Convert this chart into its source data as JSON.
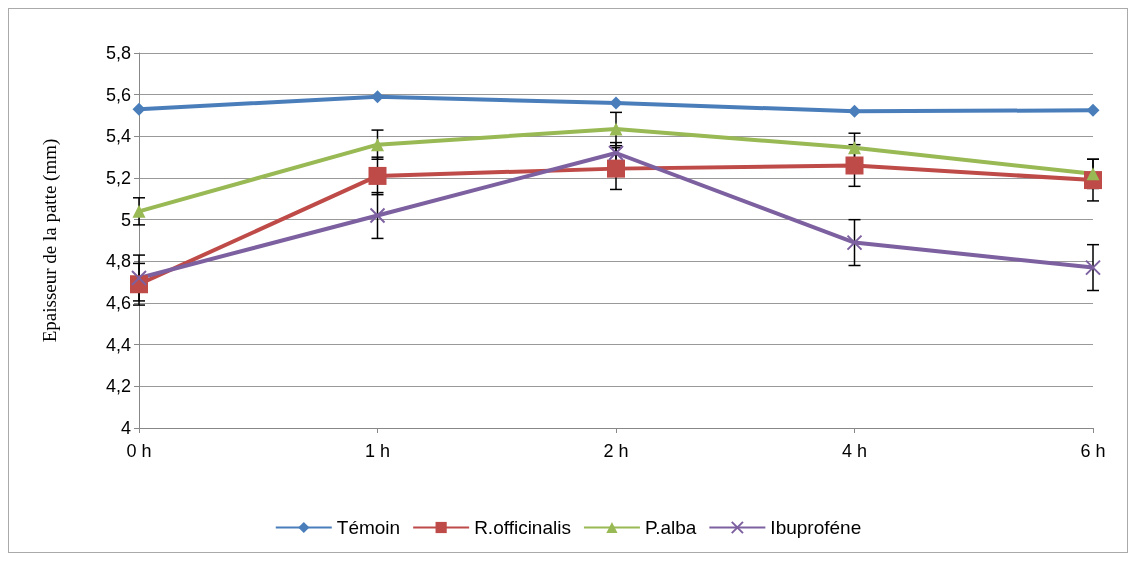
{
  "chart_data": {
    "type": "line",
    "ylabel": "Epaisseur de la patte (mm)",
    "categories": [
      "0 h",
      "1 h",
      "2 h",
      "4 h",
      "6 h"
    ],
    "ylim": [
      4,
      5.8
    ],
    "yticks": [
      {
        "value": 4,
        "label": "4"
      },
      {
        "value": 4.2,
        "label": "4,2"
      },
      {
        "value": 4.4,
        "label": "4,4"
      },
      {
        "value": 4.6,
        "label": "4,6"
      },
      {
        "value": 4.8,
        "label": "4,8"
      },
      {
        "value": 5,
        "label": "5"
      },
      {
        "value": 5.2,
        "label": "5,2"
      },
      {
        "value": 5.4,
        "label": "5,4"
      },
      {
        "value": 5.6,
        "label": "5,6"
      },
      {
        "value": 5.8,
        "label": "5,8"
      }
    ],
    "grid": "y",
    "legend": "bottom",
    "line_style": "solid",
    "series": [
      {
        "name": "Témoin",
        "color": "#4a7ebb",
        "marker": "diamond",
        "values": [
          5.53,
          5.59,
          5.56,
          5.52,
          5.525
        ]
      },
      {
        "name": "R.officinalis",
        "color": "#be4b48",
        "marker": "square",
        "values": [
          4.69,
          5.21,
          5.245,
          5.26,
          5.19
        ],
        "errors": [
          0.1,
          0.09,
          0.1,
          0.1,
          0.1
        ]
      },
      {
        "name": "P.alba",
        "color": "#98b954",
        "marker": "triangle",
        "values": [
          5.04,
          5.36,
          5.435,
          5.345,
          5.22
        ],
        "errors": [
          0.065,
          0.07,
          0.08,
          0.07,
          0.07
        ]
      },
      {
        "name": "Ibuproféne",
        "color": "#7d60a0",
        "marker": "cross",
        "values": [
          4.72,
          5.02,
          5.32,
          4.89,
          4.77
        ],
        "errors": [
          0.11,
          0.11,
          0.05,
          0.11,
          0.11
        ]
      }
    ]
  }
}
